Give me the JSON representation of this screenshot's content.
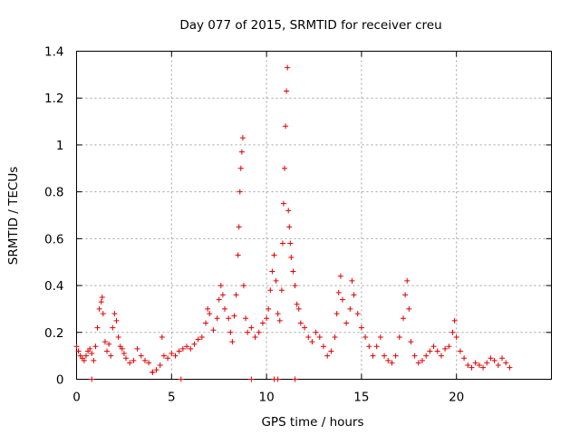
{
  "chart_data": {
    "type": "scatter",
    "title": "Day 077 of 2015, SRMTID for receiver creu",
    "xlabel": "GPS time / hours",
    "ylabel": "SRMTID / TECUs",
    "xlim": [
      0,
      25
    ],
    "ylim": [
      0,
      1.4
    ],
    "xticks": [
      0,
      5,
      10,
      15,
      20
    ],
    "yticks": [
      0,
      0.2,
      0.4,
      0.6,
      0.8,
      1,
      1.2,
      1.4
    ],
    "xtick_labels": [
      "0",
      "5",
      "10",
      "15",
      "20"
    ],
    "ytick_labels": [
      "0",
      "0.2",
      "0.4",
      "0.6",
      "0.8",
      "1",
      "1.2",
      "1.4"
    ],
    "grid": true,
    "marker": "+",
    "color": "#e00000",
    "series": [
      {
        "name": "SRMTID",
        "points": [
          [
            0.0,
            0.14
          ],
          [
            0.1,
            0.12
          ],
          [
            0.2,
            0.1
          ],
          [
            0.3,
            0.09
          ],
          [
            0.4,
            0.08
          ],
          [
            0.5,
            0.1
          ],
          [
            0.6,
            0.12
          ],
          [
            0.7,
            0.13
          ],
          [
            0.8,
            0.11
          ],
          [
            0.9,
            0.08
          ],
          [
            1.0,
            0.14
          ],
          [
            1.1,
            0.22
          ],
          [
            1.2,
            0.3
          ],
          [
            1.3,
            0.33
          ],
          [
            1.35,
            0.35
          ],
          [
            1.4,
            0.28
          ],
          [
            1.5,
            0.16
          ],
          [
            1.6,
            0.12
          ],
          [
            1.7,
            0.15
          ],
          [
            1.8,
            0.1
          ],
          [
            1.9,
            0.22
          ],
          [
            2.0,
            0.28
          ],
          [
            2.1,
            0.25
          ],
          [
            2.2,
            0.18
          ],
          [
            2.3,
            0.14
          ],
          [
            2.4,
            0.13
          ],
          [
            2.5,
            0.11
          ],
          [
            2.6,
            0.09
          ],
          [
            2.8,
            0.07
          ],
          [
            3.0,
            0.08
          ],
          [
            3.2,
            0.13
          ],
          [
            3.4,
            0.1
          ],
          [
            3.6,
            0.08
          ],
          [
            3.8,
            0.07
          ],
          [
            4.0,
            0.03
          ],
          [
            4.2,
            0.04
          ],
          [
            4.4,
            0.06
          ],
          [
            4.5,
            0.18
          ],
          [
            4.6,
            0.1
          ],
          [
            4.8,
            0.09
          ],
          [
            5.0,
            0.11
          ],
          [
            5.2,
            0.1
          ],
          [
            5.4,
            0.12
          ],
          [
            5.6,
            0.13
          ],
          [
            5.8,
            0.14
          ],
          [
            6.0,
            0.13
          ],
          [
            6.2,
            0.15
          ],
          [
            6.4,
            0.17
          ],
          [
            6.6,
            0.18
          ],
          [
            6.8,
            0.24
          ],
          [
            6.9,
            0.3
          ],
          [
            7.0,
            0.28
          ],
          [
            7.2,
            0.21
          ],
          [
            7.4,
            0.26
          ],
          [
            7.5,
            0.34
          ],
          [
            7.6,
            0.4
          ],
          [
            7.7,
            0.36
          ],
          [
            7.8,
            0.3
          ],
          [
            8.0,
            0.26
          ],
          [
            8.1,
            0.2
          ],
          [
            8.2,
            0.16
          ],
          [
            8.3,
            0.27
          ],
          [
            8.4,
            0.36
          ],
          [
            8.5,
            0.53
          ],
          [
            8.55,
            0.65
          ],
          [
            8.6,
            0.8
          ],
          [
            8.65,
            0.9
          ],
          [
            8.7,
            0.97
          ],
          [
            8.75,
            1.03
          ],
          [
            8.8,
            0.4
          ],
          [
            8.9,
            0.26
          ],
          [
            9.0,
            0.2
          ],
          [
            9.2,
            0.22
          ],
          [
            9.4,
            0.18
          ],
          [
            9.6,
            0.2
          ],
          [
            9.8,
            0.24
          ],
          [
            10.0,
            0.26
          ],
          [
            10.1,
            0.3
          ],
          [
            10.2,
            0.38
          ],
          [
            10.3,
            0.46
          ],
          [
            10.4,
            0.53
          ],
          [
            10.5,
            0.42
          ],
          [
            10.6,
            0.28
          ],
          [
            10.7,
            0.25
          ],
          [
            10.8,
            0.38
          ],
          [
            10.85,
            0.58
          ],
          [
            10.9,
            0.75
          ],
          [
            10.95,
            0.9
          ],
          [
            11.0,
            1.08
          ],
          [
            11.05,
            1.23
          ],
          [
            11.1,
            1.33
          ],
          [
            11.15,
            0.72
          ],
          [
            11.2,
            0.65
          ],
          [
            11.25,
            0.58
          ],
          [
            11.3,
            0.52
          ],
          [
            11.4,
            0.46
          ],
          [
            11.5,
            0.4
          ],
          [
            11.6,
            0.32
          ],
          [
            11.7,
            0.3
          ],
          [
            11.8,
            0.24
          ],
          [
            12.0,
            0.22
          ],
          [
            12.2,
            0.18
          ],
          [
            12.4,
            0.16
          ],
          [
            12.6,
            0.2
          ],
          [
            12.8,
            0.18
          ],
          [
            13.0,
            0.14
          ],
          [
            13.2,
            0.1
          ],
          [
            13.4,
            0.12
          ],
          [
            13.6,
            0.18
          ],
          [
            13.7,
            0.28
          ],
          [
            13.8,
            0.37
          ],
          [
            13.9,
            0.44
          ],
          [
            14.0,
            0.34
          ],
          [
            14.2,
            0.24
          ],
          [
            14.4,
            0.3
          ],
          [
            14.5,
            0.42
          ],
          [
            14.6,
            0.36
          ],
          [
            14.8,
            0.28
          ],
          [
            15.0,
            0.22
          ],
          [
            15.2,
            0.18
          ],
          [
            15.4,
            0.14
          ],
          [
            15.6,
            0.1
          ],
          [
            15.8,
            0.14
          ],
          [
            16.0,
            0.18
          ],
          [
            16.2,
            0.1
          ],
          [
            16.4,
            0.08
          ],
          [
            16.6,
            0.07
          ],
          [
            16.8,
            0.1
          ],
          [
            17.0,
            0.18
          ],
          [
            17.2,
            0.26
          ],
          [
            17.3,
            0.36
          ],
          [
            17.4,
            0.42
          ],
          [
            17.5,
            0.3
          ],
          [
            17.6,
            0.16
          ],
          [
            17.8,
            0.1
          ],
          [
            18.0,
            0.07
          ],
          [
            18.2,
            0.08
          ],
          [
            18.4,
            0.1
          ],
          [
            18.6,
            0.12
          ],
          [
            18.8,
            0.14
          ],
          [
            19.0,
            0.12
          ],
          [
            19.2,
            0.1
          ],
          [
            19.4,
            0.13
          ],
          [
            19.6,
            0.14
          ],
          [
            19.8,
            0.2
          ],
          [
            19.9,
            0.25
          ],
          [
            20.0,
            0.18
          ],
          [
            20.2,
            0.12
          ],
          [
            20.4,
            0.09
          ],
          [
            20.6,
            0.06
          ],
          [
            20.8,
            0.05
          ],
          [
            21.0,
            0.07
          ],
          [
            21.2,
            0.06
          ],
          [
            21.4,
            0.05
          ],
          [
            21.6,
            0.07
          ],
          [
            21.8,
            0.09
          ],
          [
            22.0,
            0.08
          ],
          [
            22.2,
            0.06
          ],
          [
            22.4,
            0.09
          ],
          [
            22.6,
            0.07
          ],
          [
            22.8,
            0.05
          ],
          [
            0.8,
            0.0
          ],
          [
            4.0,
            0.03
          ],
          [
            5.5,
            0.0
          ],
          [
            9.2,
            0.0
          ],
          [
            10.4,
            0.0
          ],
          [
            10.6,
            0.0
          ],
          [
            11.5,
            0.0
          ]
        ]
      }
    ]
  }
}
